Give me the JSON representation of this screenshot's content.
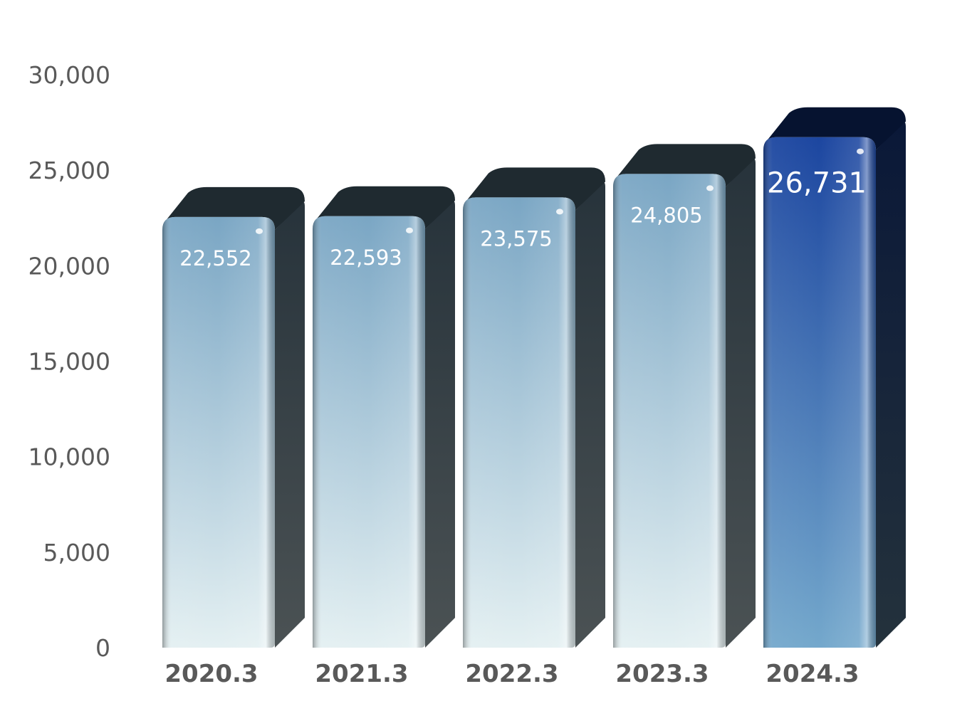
{
  "chart_data": {
    "type": "bar",
    "categories": [
      "2020.3",
      "2021.3",
      "2022.3",
      "2023.3",
      "2024.3"
    ],
    "values": [
      22552,
      22593,
      23575,
      24805,
      26731
    ],
    "value_labels": [
      "22,552",
      "22,593",
      "23,575",
      "24,805",
      "26,731"
    ],
    "y_ticks": [
      "0",
      "5,000",
      "10,000",
      "15,000",
      "20,000",
      "25,000",
      "30,000"
    ],
    "ylim": [
      0,
      30000
    ],
    "grid": false,
    "legend": "none",
    "highlight_index": 4,
    "colors": {
      "bar_top": "#7aa6c4",
      "bar_bottom": "#e4f0f2",
      "bar_side": "#2c3a44",
      "highlight_top": "#1c46a0",
      "highlight_bottom": "#74a8cc",
      "highlight_side": "#0c1c3c",
      "axis_text": "#595959"
    }
  }
}
